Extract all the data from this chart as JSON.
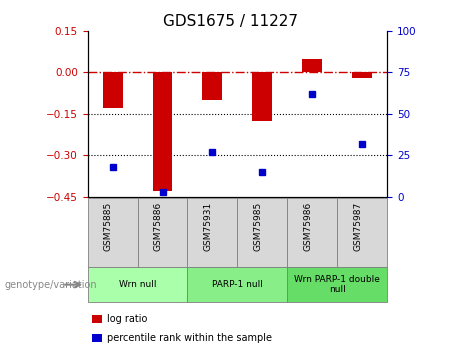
{
  "title": "GDS1675 / 11227",
  "samples": [
    "GSM75885",
    "GSM75886",
    "GSM75931",
    "GSM75985",
    "GSM75986",
    "GSM75987"
  ],
  "log_ratio": [
    -0.13,
    -0.43,
    -0.1,
    -0.175,
    0.05,
    -0.02
  ],
  "percentile_rank": [
    18,
    3,
    27,
    15,
    62,
    32
  ],
  "ylim_left": [
    -0.45,
    0.15
  ],
  "ylim_right": [
    0,
    100
  ],
  "yticks_left": [
    0.15,
    0,
    -0.15,
    -0.3,
    -0.45
  ],
  "yticks_right": [
    100,
    75,
    50,
    25,
    0
  ],
  "bar_color": "#cc0000",
  "dot_color": "#0000cc",
  "hline_color": "#cc0000",
  "dotted_lines": [
    -0.15,
    -0.3
  ],
  "groups": [
    {
      "label": "Wrn null",
      "start": 0,
      "end": 2,
      "color": "#aaffaa"
    },
    {
      "label": "PARP-1 null",
      "start": 2,
      "end": 4,
      "color": "#88ee88"
    },
    {
      "label": "Wrn PARP-1 double\nnull",
      "start": 4,
      "end": 6,
      "color": "#66dd66"
    }
  ],
  "legend_items": [
    {
      "label": "log ratio",
      "color": "#cc0000"
    },
    {
      "label": "percentile rank within the sample",
      "color": "#0000cc"
    }
  ],
  "genotype_label": "genotype/variation",
  "bar_width": 0.4,
  "background_color": "#ffffff",
  "tick_label_color_left": "#cc0000",
  "tick_label_color_right": "#0000cc"
}
